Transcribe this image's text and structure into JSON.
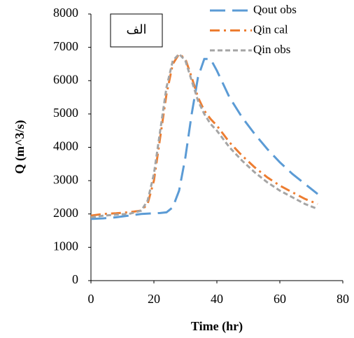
{
  "chart_data": {
    "type": "line",
    "annotation": "الف",
    "x_label": "Time (hr)",
    "y_label": "Q (m^3/s)",
    "x": [
      0,
      4,
      8,
      12,
      16,
      18,
      20,
      22,
      24,
      26,
      28,
      30,
      32,
      34,
      36,
      38,
      40,
      44,
      48,
      52,
      56,
      60,
      64,
      68,
      72
    ],
    "series": [
      {
        "name": "Qout obs",
        "color": "#5b9bd5",
        "dash": "long",
        "values": [
          1850,
          1870,
          1900,
          1950,
          2000,
          2010,
          2020,
          2030,
          2050,
          2200,
          2700,
          3700,
          5000,
          6100,
          6650,
          6650,
          6300,
          5500,
          4900,
          4400,
          3950,
          3550,
          3200,
          2900,
          2600
        ]
      },
      {
        "name": "Qin cal",
        "color": "#ed7d31",
        "dash": "dashdot",
        "values": [
          1950,
          2000,
          2020,
          2050,
          2100,
          2300,
          3000,
          4300,
          5600,
          6500,
          6800,
          6650,
          6100,
          5500,
          5100,
          4850,
          4650,
          4150,
          3750,
          3400,
          3100,
          2850,
          2650,
          2450,
          2300
        ]
      },
      {
        "name": "Qin obs",
        "color": "#a5a5a5",
        "dash": "short",
        "values": [
          1900,
          1950,
          1980,
          2000,
          2100,
          2400,
          3200,
          4500,
          5800,
          6600,
          6800,
          6600,
          6000,
          5400,
          5000,
          4700,
          4500,
          4000,
          3600,
          3250,
          2950,
          2700,
          2500,
          2300,
          2150
        ]
      }
    ],
    "xlim": [
      0,
      80
    ],
    "xticks": [
      0,
      20,
      40,
      60,
      80
    ],
    "ylim": [
      0,
      8000
    ],
    "yticks": [
      0,
      1000,
      2000,
      3000,
      4000,
      5000,
      6000,
      7000,
      8000
    ],
    "grid": false
  }
}
